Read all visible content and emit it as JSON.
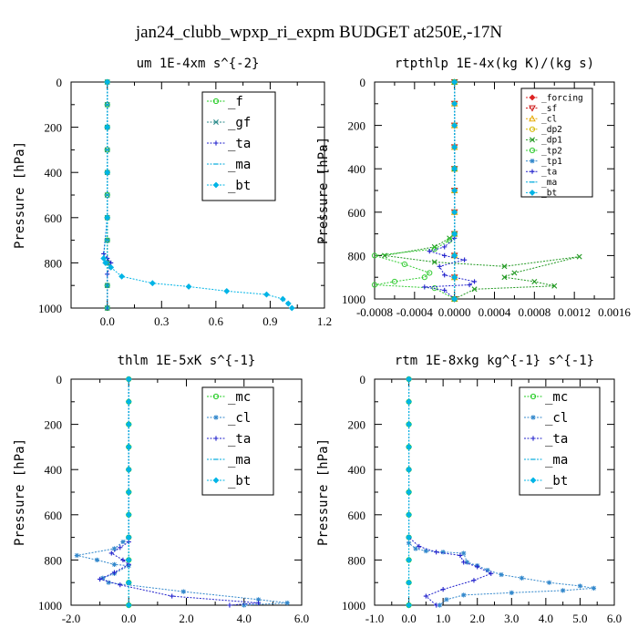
{
  "figure_title": "jan24_clubb_wpxp_ri_expm  BUDGET at250E,-17N",
  "chart_data": [
    {
      "type": "line",
      "title": "um  1E-4xm s^{-2}",
      "ylabel": "Pressure [hPa]",
      "xlabel": "",
      "xlim": [
        -0.2,
        1.2
      ],
      "ylim": [
        1000,
        0
      ],
      "xticks": [
        0.0,
        0.3,
        0.6,
        0.9,
        1.2
      ],
      "xtick_labels": [
        "0.0",
        "0.3",
        "0.6",
        "0.9",
        "1.2"
      ],
      "yticks": [
        0,
        200,
        400,
        600,
        800,
        1000
      ],
      "ytick_labels": [
        "0",
        "200",
        "400",
        "600",
        "800",
        "1000"
      ],
      "legend_position": "top-right",
      "series": [
        {
          "name": "_f",
          "color": "#22cc22",
          "marker": "circle",
          "x": [
            0,
            0,
            0,
            0,
            0,
            0,
            0,
            0,
            0,
            0,
            0
          ],
          "y": [
            0,
            100,
            200,
            300,
            400,
            500,
            600,
            700,
            800,
            900,
            1000
          ]
        },
        {
          "name": "_gf",
          "color": "#2a8a8a",
          "marker": "x",
          "x": [
            0,
            0,
            0,
            0,
            0,
            0,
            0,
            0,
            0,
            0,
            0
          ],
          "y": [
            0,
            100,
            200,
            300,
            400,
            500,
            600,
            700,
            800,
            900,
            1000
          ]
        },
        {
          "name": "_ta",
          "color": "#2222cc",
          "marker": "plus",
          "x": [
            0,
            0,
            0,
            0,
            -0.02,
            0.0,
            0.02,
            0.0,
            0.0
          ],
          "y": [
            0,
            200,
            400,
            600,
            760,
            780,
            800,
            850,
            1000
          ]
        },
        {
          "name": "_ma",
          "color": "#00aadd",
          "marker": "dash",
          "x": [
            0,
            0,
            0,
            0,
            0,
            0,
            0,
            0,
            0,
            0,
            0
          ],
          "y": [
            0,
            100,
            200,
            300,
            400,
            500,
            600,
            700,
            800,
            900,
            1000
          ]
        },
        {
          "name": "_bt",
          "color": "#00b4e6",
          "marker": "diamond",
          "x": [
            0,
            0,
            0,
            0.0,
            -0.02,
            -0.01,
            0.02,
            0.08,
            0.25,
            0.45,
            0.66,
            0.88,
            0.97,
            1.0,
            1.02
          ],
          "y": [
            0,
            200,
            400,
            600,
            780,
            800,
            820,
            860,
            890,
            905,
            925,
            940,
            960,
            980,
            1000
          ]
        }
      ]
    },
    {
      "type": "line",
      "title": "rtpthlp  1E-4x(kg K)/(kg s)",
      "ylabel": "Pressure [hPa]",
      "xlabel": "",
      "xlim": [
        -0.0008,
        0.0016
      ],
      "ylim": [
        1000,
        0
      ],
      "xticks": [
        -0.0008,
        -0.0004,
        0.0,
        0.0004,
        0.0008,
        0.0012,
        0.0016
      ],
      "xtick_labels": [
        "-0.0008",
        "-0.0004",
        "0.0000",
        "0.0004",
        "0.0008",
        "0.0012",
        "0.0016"
      ],
      "yticks": [
        0,
        200,
        400,
        600,
        800,
        1000
      ],
      "ytick_labels": [
        "0",
        "200",
        "400",
        "600",
        "800",
        "1000"
      ],
      "legend_position": "top-right",
      "series": [
        {
          "name": "_forcing",
          "color": "#dd2222",
          "marker": "diamond",
          "x": [
            0,
            0,
            0,
            0,
            0,
            0,
            0,
            0,
            0,
            0,
            0
          ],
          "y": [
            0,
            100,
            200,
            300,
            400,
            500,
            600,
            700,
            800,
            900,
            1000
          ]
        },
        {
          "name": "_sf",
          "color": "#cc1111",
          "marker": "triangle-down",
          "x": [
            0,
            0,
            0,
            0,
            0,
            0,
            0,
            0,
            0,
            0,
            0
          ],
          "y": [
            0,
            100,
            200,
            300,
            400,
            500,
            600,
            700,
            800,
            900,
            1000
          ]
        },
        {
          "name": "_cl",
          "color": "#e6a800",
          "marker": "triangle",
          "x": [
            0,
            0,
            0,
            0,
            0,
            0,
            0,
            0,
            0,
            0,
            0
          ],
          "y": [
            0,
            100,
            200,
            300,
            400,
            500,
            600,
            700,
            800,
            900,
            1000
          ]
        },
        {
          "name": "_dp2",
          "color": "#d4b800",
          "marker": "circle",
          "x": [
            0,
            0,
            0,
            0,
            0,
            0,
            0,
            0,
            0,
            0,
            0
          ],
          "y": [
            0,
            100,
            200,
            300,
            400,
            500,
            600,
            700,
            800,
            900,
            1000
          ]
        },
        {
          "name": "_dp1",
          "color": "#229922",
          "marker": "x",
          "x": [
            0,
            0,
            0,
            -5e-05,
            -0.0002,
            -0.0007,
            -0.0002,
            0.0005,
            0.00125,
            0.0006,
            0.0005,
            0.0008,
            0.001,
            0.0002,
            0.0
          ],
          "y": [
            0,
            400,
            700,
            720,
            760,
            800,
            830,
            850,
            805,
            880,
            900,
            920,
            940,
            955,
            1000
          ]
        },
        {
          "name": "_tp2",
          "color": "#33cc33",
          "marker": "circle",
          "x": [
            0,
            0,
            0,
            -5e-05,
            -0.0002,
            -0.0008,
            -0.0005,
            -0.00025,
            -0.0003,
            -0.0006,
            -0.0008,
            -0.0002,
            0.0
          ],
          "y": [
            0,
            400,
            700,
            730,
            770,
            800,
            840,
            880,
            900,
            920,
            935,
            950,
            1000
          ]
        },
        {
          "name": "_tp1",
          "color": "#3388cc",
          "marker": "asterisk",
          "x": [
            0,
            0,
            0,
            0,
            0,
            0,
            0,
            0,
            0,
            0,
            0
          ],
          "y": [
            0,
            100,
            200,
            300,
            400,
            500,
            600,
            700,
            800,
            900,
            1000
          ]
        },
        {
          "name": "_ta",
          "color": "#2222cc",
          "marker": "plus",
          "x": [
            0,
            0,
            0,
            -0.0001,
            -0.00025,
            -0.0001,
            0.0001,
            -0.00015,
            -0.0001,
            0.0002,
            0.00015,
            -0.0003,
            -0.0001,
            0.0
          ],
          "y": [
            0,
            600,
            720,
            760,
            780,
            800,
            820,
            850,
            890,
            920,
            935,
            945,
            960,
            1000
          ]
        },
        {
          "name": "_ma",
          "color": "#00aadd",
          "marker": "dash",
          "x": [
            0,
            0,
            0,
            0,
            0,
            0,
            0,
            0,
            0,
            0,
            0
          ],
          "y": [
            0,
            100,
            200,
            300,
            400,
            500,
            600,
            700,
            800,
            900,
            1000
          ]
        },
        {
          "name": "_bt",
          "color": "#00b4e6",
          "marker": "diamond",
          "x": [
            0,
            0,
            0,
            0,
            0,
            0,
            0,
            0,
            0,
            0,
            0
          ],
          "y": [
            0,
            100,
            200,
            300,
            400,
            500,
            600,
            700,
            800,
            900,
            1000
          ]
        }
      ]
    },
    {
      "type": "line",
      "title": "thlm  1E-5xK s^{-1}",
      "ylabel": "Pressure [hPa]",
      "xlabel": "",
      "xlim": [
        -2.0,
        6.0
      ],
      "ylim": [
        1000,
        0
      ],
      "xticks": [
        -2.0,
        0.0,
        2.0,
        4.0,
        6.0
      ],
      "xtick_labels": [
        "-2.0",
        "0.0",
        "2.0",
        "4.0",
        "6.0"
      ],
      "yticks": [
        0,
        200,
        400,
        600,
        800,
        1000
      ],
      "ytick_labels": [
        "0",
        "200",
        "400",
        "600",
        "800",
        "1000"
      ],
      "legend_position": "top-right",
      "series": [
        {
          "name": "_mc",
          "color": "#22cc22",
          "marker": "circle",
          "x": [
            0,
            0,
            0,
            0,
            0,
            0,
            0,
            0,
            0,
            0,
            0
          ],
          "y": [
            0,
            100,
            200,
            300,
            400,
            500,
            600,
            700,
            800,
            900,
            1000
          ]
        },
        {
          "name": "_cl",
          "color": "#3388cc",
          "marker": "asterisk",
          "x": [
            0,
            0,
            0,
            -0.2,
            -0.5,
            -1.8,
            -1.1,
            -0.5,
            0.0,
            -0.5,
            -0.9,
            -0.7,
            1.9,
            4.5,
            5.5,
            4.0
          ],
          "y": [
            0,
            400,
            700,
            720,
            750,
            780,
            800,
            820,
            825,
            860,
            880,
            900,
            940,
            975,
            990,
            1000
          ]
        },
        {
          "name": "_ta",
          "color": "#2222cc",
          "marker": "plus",
          "x": [
            0,
            0,
            0,
            -0.3,
            -0.6,
            -0.2,
            0.0,
            -0.5,
            -1.0,
            -0.3,
            1.5,
            4.5,
            3.5
          ],
          "y": [
            0,
            600,
            720,
            745,
            770,
            800,
            820,
            855,
            885,
            910,
            960,
            990,
            1000
          ]
        },
        {
          "name": "_ma",
          "color": "#00aadd",
          "marker": "dash",
          "x": [
            0,
            0,
            0,
            0,
            0,
            0,
            0,
            0,
            0,
            0,
            0
          ],
          "y": [
            0,
            100,
            200,
            300,
            400,
            500,
            600,
            700,
            800,
            900,
            1000
          ]
        },
        {
          "name": "_bt",
          "color": "#00b4e6",
          "marker": "diamond",
          "x": [
            0,
            0,
            0,
            0,
            0,
            0,
            0,
            0,
            0,
            0,
            0
          ],
          "y": [
            0,
            100,
            200,
            300,
            400,
            500,
            600,
            700,
            800,
            900,
            1000
          ]
        }
      ]
    },
    {
      "type": "line",
      "title": "rtm  1E-8xkg kg^{-1} s^{-1}",
      "ylabel": "Pressure [hPa]",
      "xlabel": "",
      "xlim": [
        -1.0,
        6.0
      ],
      "ylim": [
        1000,
        0
      ],
      "xticks": [
        -1.0,
        0.0,
        1.0,
        2.0,
        3.0,
        4.0,
        5.0,
        6.0
      ],
      "xtick_labels": [
        "-1.0",
        "0.0",
        "1.0",
        "2.0",
        "3.0",
        "4.0",
        "5.0",
        "6.0"
      ],
      "yticks": [
        0,
        200,
        400,
        600,
        800,
        1000
      ],
      "ytick_labels": [
        "0",
        "200",
        "400",
        "600",
        "800",
        "1000"
      ],
      "legend_position": "top-right",
      "series": [
        {
          "name": "_mc",
          "color": "#22cc22",
          "marker": "circle",
          "x": [
            0,
            0,
            0,
            0,
            0,
            0,
            0,
            0,
            0,
            0,
            0
          ],
          "y": [
            0,
            100,
            200,
            300,
            400,
            500,
            600,
            700,
            800,
            900,
            1000
          ]
        },
        {
          "name": "_cl",
          "color": "#3388cc",
          "marker": "asterisk",
          "x": [
            0,
            0,
            0,
            0.0,
            0.2,
            0.5,
            1.0,
            1.6,
            1.7,
            2.0,
            2.3,
            2.7,
            3.3,
            4.1,
            5.0,
            5.4,
            4.5,
            3.0,
            1.6,
            1.1,
            0.9
          ],
          "y": [
            0,
            400,
            700,
            725,
            750,
            760,
            765,
            770,
            810,
            825,
            845,
            865,
            880,
            900,
            915,
            925,
            935,
            945,
            955,
            975,
            1000
          ]
        },
        {
          "name": "_ta",
          "color": "#2222cc",
          "marker": "plus",
          "x": [
            0,
            0,
            0,
            0.3,
            0.8,
            1.5,
            1.6,
            2.0,
            2.4,
            1.9,
            1.0,
            0.5,
            0.8
          ],
          "y": [
            0,
            600,
            700,
            740,
            765,
            780,
            810,
            830,
            860,
            890,
            930,
            960,
            1000
          ]
        },
        {
          "name": "_ma",
          "color": "#00aadd",
          "marker": "dash",
          "x": [
            0,
            0,
            0,
            0,
            0,
            0,
            0,
            0,
            0,
            0,
            0
          ],
          "y": [
            0,
            100,
            200,
            300,
            400,
            500,
            600,
            700,
            800,
            900,
            1000
          ]
        },
        {
          "name": "_bt",
          "color": "#00b4e6",
          "marker": "diamond",
          "x": [
            0,
            0,
            0,
            0,
            0,
            0,
            0,
            0,
            0,
            0,
            0
          ],
          "y": [
            0,
            100,
            200,
            300,
            400,
            500,
            600,
            700,
            800,
            900,
            1000
          ]
        }
      ]
    }
  ]
}
